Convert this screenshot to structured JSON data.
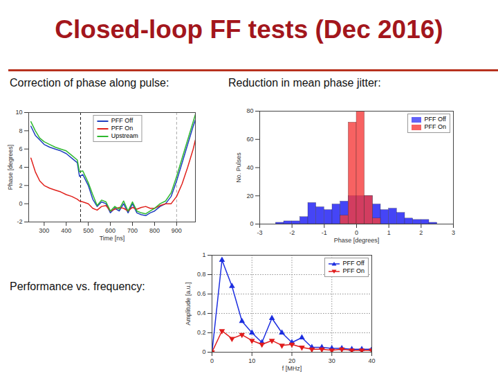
{
  "title": "Closed-loop FF tests (Dec 2016)",
  "chart_data": [
    {
      "type": "line",
      "title": "Correction of phase along pulse:",
      "x_label": "Time [ns]",
      "y_label": "Phase [degrees]",
      "x": [
        240,
        260,
        280,
        300,
        325,
        350,
        375,
        400,
        425,
        450,
        460,
        475,
        500,
        520,
        540,
        560,
        580,
        600,
        620,
        640,
        660,
        680,
        700,
        720,
        740,
        760,
        780,
        800,
        825,
        850,
        875,
        900,
        925,
        950,
        975,
        985
      ],
      "series": [
        {
          "name": "PFF Off",
          "color": "#1f3fbf",
          "values": [
            8.5,
            7.5,
            7,
            6.5,
            6.2,
            6,
            5.8,
            5.5,
            5,
            4.5,
            3,
            3.2,
            2,
            0.5,
            -0.3,
            0.2,
            0,
            -1,
            -0.5,
            -0.8,
            0,
            -1,
            0,
            -1,
            -1.2,
            -1.3,
            -1,
            -0.8,
            -0.3,
            0,
            0.8,
            2.5,
            4.5,
            6.5,
            8.5,
            9.2
          ]
        },
        {
          "name": "PFF On",
          "color": "#e0201b",
          "values": [
            5,
            3.5,
            2.5,
            2,
            1.7,
            1.5,
            1.3,
            1,
            0.8,
            0.5,
            0.3,
            0.2,
            0,
            -0.5,
            -0.7,
            -0.3,
            -0.2,
            -0.8,
            -0.6,
            -0.4,
            -0.5,
            -0.8,
            -0.4,
            -0.6,
            -0.4,
            -0.3,
            -0.5,
            -0.5,
            -0.2,
            0,
            0,
            0.8,
            2.2,
            4,
            6,
            7
          ]
        },
        {
          "name": "Upstream",
          "color": "#2eb82e",
          "values": [
            9,
            8,
            7.2,
            6.8,
            6.5,
            6.2,
            6,
            5.8,
            5.3,
            4.8,
            3.5,
            3.6,
            2.3,
            1,
            -0.2,
            0.4,
            0.2,
            -0.8,
            -0.3,
            -0.6,
            0.3,
            -0.8,
            0.2,
            -0.8,
            -1,
            -1.1,
            -0.8,
            -0.5,
            0,
            0.3,
            1.2,
            3,
            5,
            7,
            9,
            9.8
          ]
        }
      ],
      "vlines": [
        465,
        900
      ],
      "xlim": [
        230,
        985
      ],
      "xticks": [
        300,
        400,
        500,
        600,
        700,
        800,
        900
      ],
      "ylim": [
        -2,
        10
      ],
      "yticks": [
        -2,
        0,
        2,
        4,
        6,
        8,
        10
      ],
      "grid": false,
      "legend": "top"
    },
    {
      "type": "histogram",
      "title": "Reduction in mean phase jitter:",
      "x_label": "Phase [degrees]",
      "y_label": "No. Pulses",
      "bins": [
        -2.5,
        -2.25,
        -2,
        -1.75,
        -1.5,
        -1.25,
        -1,
        -0.75,
        -0.5,
        -0.25,
        0,
        0.25,
        0.5,
        0.75,
        1,
        1.25,
        1.5,
        1.75,
        2,
        2.25,
        2.5
      ],
      "series": [
        {
          "name": "PFF Off",
          "color": "#3b3bf5",
          "counts": [
            1,
            2,
            2,
            5,
            15,
            12,
            10,
            14,
            16,
            20,
            20,
            20,
            14,
            10,
            11,
            8,
            4,
            3,
            3,
            1
          ]
        },
        {
          "name": "PFF On",
          "color": "#f53b3b",
          "counts": [
            0,
            0,
            0,
            0,
            0,
            0,
            0,
            0,
            6,
            72,
            80,
            20,
            4,
            0,
            0,
            0,
            0,
            0,
            0,
            0
          ]
        }
      ],
      "xlim": [
        -3,
        3
      ],
      "xticks": [
        -3,
        -2,
        -1,
        0,
        1,
        2,
        3
      ],
      "ylim": [
        0,
        80
      ],
      "yticks": [
        0,
        20,
        40,
        60,
        80
      ],
      "grid": false,
      "stacked": false,
      "legend": "top-right"
    },
    {
      "type": "line",
      "title": "Performance vs. frequency:",
      "x_label": "f [MHz]",
      "y_label": "Amplitude [a.u.]",
      "x": [
        0,
        2.5,
        5,
        7.5,
        10,
        12.5,
        15,
        17.5,
        20,
        22.5,
        25,
        27.5,
        30,
        32.5,
        35,
        37.5,
        40
      ],
      "series": [
        {
          "name": "PFF Off",
          "color": "#1c2ee0",
          "marker": "triangle-up",
          "values": [
            0,
            0.95,
            0.68,
            0.32,
            0.2,
            0.1,
            0.35,
            0.2,
            0.1,
            0.15,
            0.05,
            0.05,
            0.04,
            0.04,
            0.03,
            0.03,
            0.03
          ]
        },
        {
          "name": "PFF On",
          "color": "#e01c1c",
          "marker": "triangle-down",
          "values": [
            0,
            0.22,
            0.14,
            0.18,
            0.12,
            0.08,
            0.12,
            0.07,
            0.08,
            0.05,
            0.03,
            0.03,
            0.02,
            0.03,
            0.02,
            0.02,
            0.02
          ]
        }
      ],
      "xlim": [
        0,
        40
      ],
      "xticks": [
        0,
        10,
        20,
        30,
        40
      ],
      "ylim": [
        0,
        1
      ],
      "yticks": [
        0,
        0.2,
        0.4,
        0.6,
        0.8,
        1
      ],
      "grid": true,
      "legend": "top-right"
    }
  ]
}
